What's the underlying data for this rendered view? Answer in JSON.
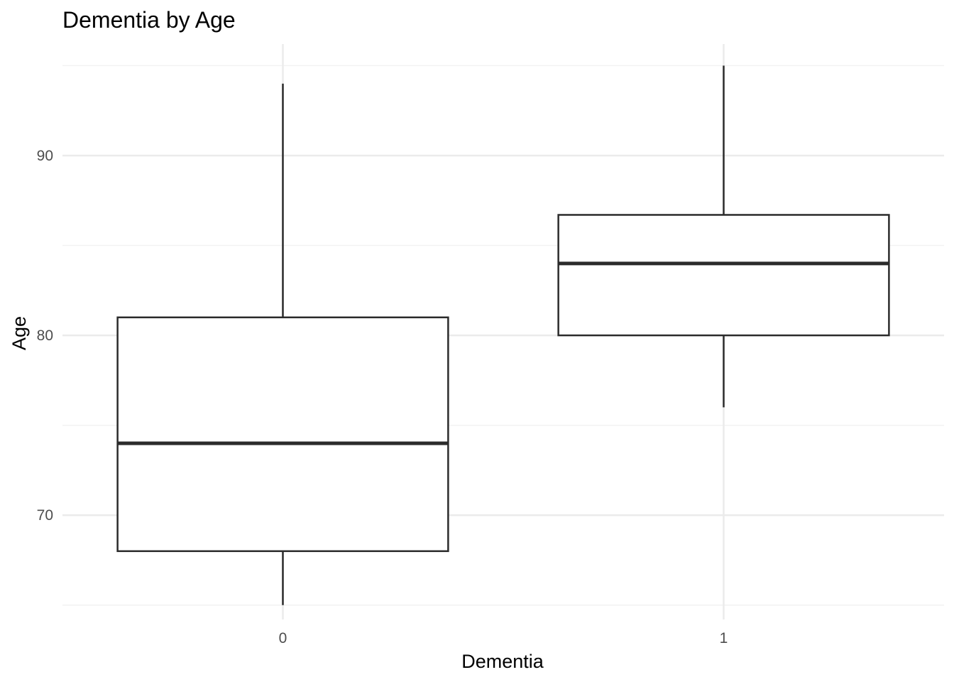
{
  "chart_data": {
    "type": "boxplot",
    "title": "Dementia by Age",
    "xlabel": "Dementia",
    "ylabel": "Age",
    "categories": [
      "0",
      "1"
    ],
    "boxes": [
      {
        "category": "0",
        "whisker_low": 65,
        "q1": 68,
        "median": 74,
        "q3": 81,
        "whisker_high": 94
      },
      {
        "category": "1",
        "whisker_low": 76,
        "q1": 80,
        "median": 84,
        "q3": 86.7,
        "whisker_high": 95
      }
    ],
    "ylim": [
      64.2,
      96.2
    ],
    "y_major_ticks": [
      70,
      80,
      90
    ],
    "y_minor_ticks": [
      65,
      75,
      85,
      95
    ],
    "y_tick_labels": [
      "70",
      "80",
      "90"
    ],
    "grid": true,
    "legend": "none",
    "colors": {
      "box_stroke": "#2b2b2b",
      "box_fill": "#ffffff",
      "grid_major": "#ebebeb",
      "grid_minor": "#f2f2f2",
      "tick_text": "#4d4d4d"
    }
  }
}
